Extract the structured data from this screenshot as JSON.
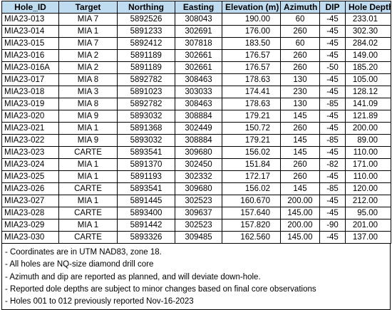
{
  "table": {
    "headers": [
      "Hole_ID",
      "Target",
      "Northing",
      "Easting",
      "Elevation (m)",
      "Azimuth",
      "DIP",
      "Hole Depth (m)"
    ],
    "rows": [
      [
        "MIA23-013",
        "MIA 7",
        "5892526",
        "308043",
        "190.00",
        "60",
        "-45",
        "233.01"
      ],
      [
        "MIA23-014",
        "MIA 1",
        "5891233",
        "302691",
        "176.00",
        "260",
        "-45",
        "302.30"
      ],
      [
        "MIA23-015",
        "MIA 7",
        "5892412",
        "307818",
        "183.50",
        "60",
        "-45",
        "284.02"
      ],
      [
        "MIA23-016",
        "MIA 2",
        "5891189",
        "302661",
        "176.57",
        "260",
        "-45",
        "149.00"
      ],
      [
        "MIA23-016A",
        "MIA 2",
        "5891189",
        "302661",
        "176.57",
        "260",
        "-50",
        "185.20"
      ],
      [
        "MIA23-017",
        "MIA 8",
        "5892782",
        "308463",
        "178.63",
        "130",
        "-45",
        "105.00"
      ],
      [
        "MIA23-018",
        "MIA 3",
        "5891023",
        "303033",
        "174.41",
        "230",
        "-45",
        "128.12"
      ],
      [
        "MIA23-019",
        "MIA 8",
        "5892782",
        "308463",
        "178.63",
        "130",
        "-85",
        "141.09"
      ],
      [
        "MIA23-020",
        "MIA 9",
        "5893032",
        "308884",
        "179.21",
        "145",
        "-45",
        "121.89"
      ],
      [
        "MIA23-021",
        "MIA 1",
        "5891368",
        "302449",
        "150.72",
        "260",
        "-45",
        "200.00"
      ],
      [
        "MIA23-022",
        "MIA 9",
        "5893032",
        "308884",
        "179.21",
        "145",
        "-85",
        "89.00"
      ],
      [
        "MIA23-023",
        "CARTE",
        "5893541",
        "309680",
        "156.02",
        "145",
        "-45",
        "110.00"
      ],
      [
        "MIA23-024",
        "MIA 1",
        "5891370",
        "302450",
        "151.84",
        "260",
        "-82",
        "171.00"
      ],
      [
        "MIA23-025",
        "MIA 1",
        "5891193",
        "302332",
        "172.17",
        "260",
        "-45",
        "110.00"
      ],
      [
        "MIA23-026",
        "CARTE",
        "5893541",
        "309680",
        "156.02",
        "145",
        "-85",
        "120.00"
      ],
      [
        "MIA23-027",
        "MIA 1",
        "5891445",
        "302523",
        "160.670",
        "200.00",
        "-45",
        "212.00"
      ],
      [
        "MIA23-028",
        "CARTE",
        "5893400",
        "309637",
        "157.640",
        "145.00",
        "-45",
        "95.00"
      ],
      [
        "MIA23-029",
        "MIA 1",
        "5891442",
        "302523",
        "157.820",
        "200.00",
        "-90",
        "201.00"
      ],
      [
        "MIA23-030",
        "CARTE",
        "5893326",
        "309485",
        "162.560",
        "145.00",
        "-45",
        "137.00"
      ]
    ]
  },
  "notes": [
    "- Coordinates are in UTM NAD83, zone 18.",
    "- All holes are NQ-size diamond drill core",
    "- Azimuth and dip are reported as planned, and will deviate down-hole.",
    "- Reported dole depths are subject to minor changes based on final core observations",
    "- Holes 001 to 012 previously reported Nov-16-2023"
  ],
  "colors": {
    "header_background": "#bfdcf1",
    "border": "#000000"
  }
}
